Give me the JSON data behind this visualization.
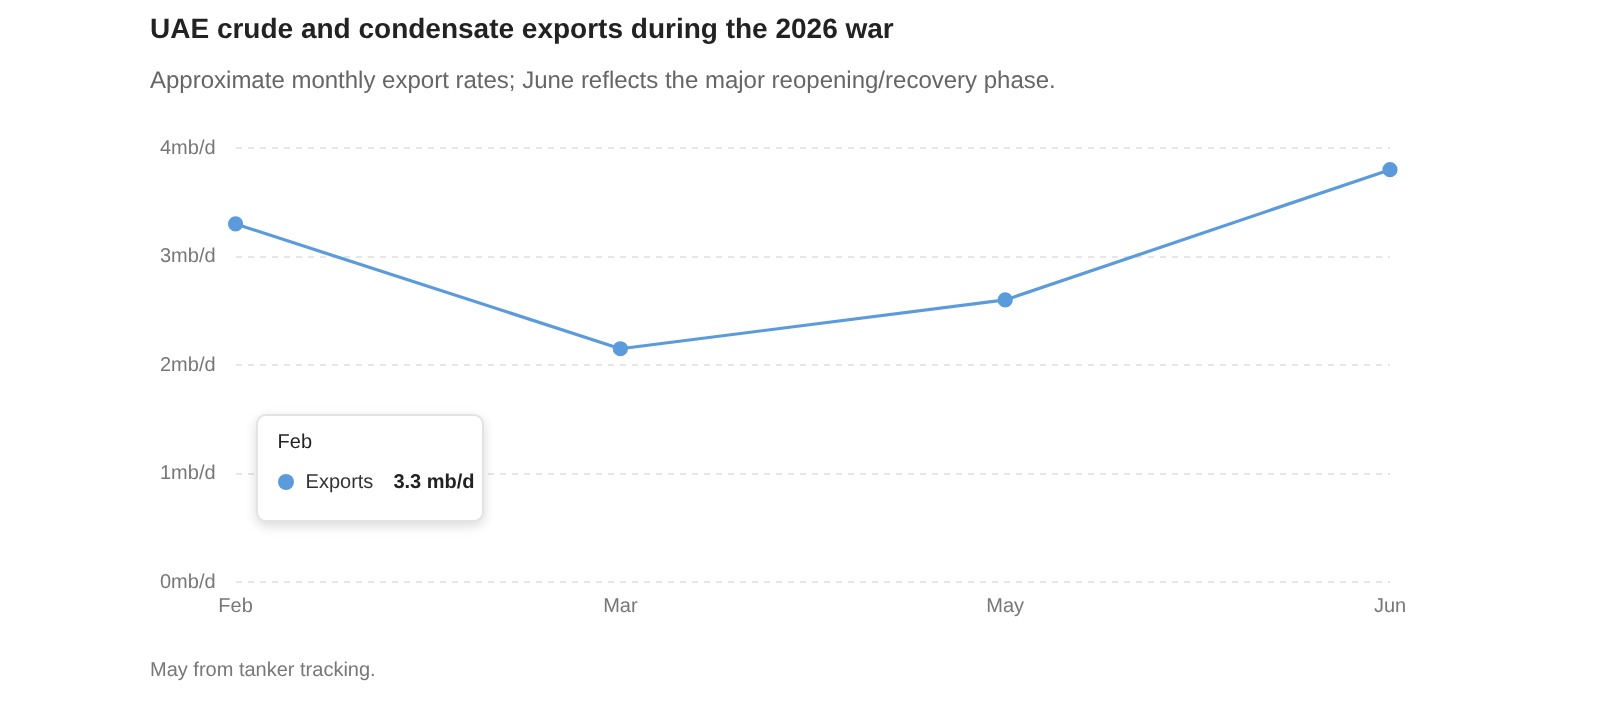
{
  "chart_data": {
    "type": "line",
    "title": "UAE crude and condensate exports during the 2026 war",
    "subtitle": "Approximate monthly export rates; June reflects the major reopening/recovery phase.",
    "categories": [
      "Feb",
      "Mar",
      "May",
      "Jun"
    ],
    "series": [
      {
        "name": "Exports",
        "color": "#5b9bdc",
        "values": [
          3.3,
          2.15,
          2.6,
          3.8
        ]
      }
    ],
    "ylim": [
      0,
      4
    ],
    "yticks": [
      {
        "value": 0,
        "label": "0mb/d"
      },
      {
        "value": 1,
        "label": "1mb/d"
      },
      {
        "value": 2,
        "label": "2mb/d"
      },
      {
        "value": 3,
        "label": "3mb/d"
      },
      {
        "value": 4,
        "label": "4mb/d"
      }
    ],
    "grid": "y",
    "marker": "circle",
    "line_style": "solid",
    "annotations": [
      "Feb",
      "3.3 mb/d",
      "May from tanker tracking."
    ]
  }
}
